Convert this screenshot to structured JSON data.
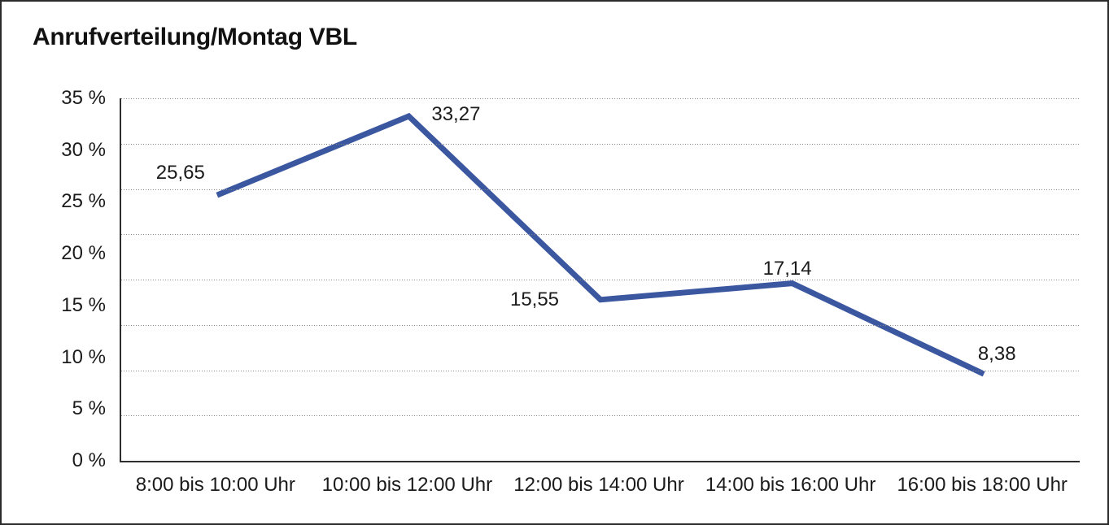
{
  "title": "Anrufverteilung/Montag VBL",
  "chart_data": {
    "type": "line",
    "title": "Anrufverteilung/Montag VBL",
    "categories": [
      "8:00 bis 10:00 Uhr",
      "10:00 bis 12:00 Uhr",
      "12:00 bis 14:00 Uhr",
      "14:00 bis 16:00 Uhr",
      "16:00 bis 18:00 Uhr"
    ],
    "values": [
      25.65,
      33.27,
      15.55,
      17.14,
      8.38
    ],
    "value_labels": [
      "25,65",
      "33,27",
      "15,55",
      "17,14",
      "8,38"
    ],
    "xlabel": "",
    "ylabel": "",
    "ylim": [
      0,
      35
    ],
    "y_tick_labels": [
      "35 %",
      "30 %",
      "25 %",
      "20 %",
      "15 %",
      "10 %",
      "5 %",
      "0 %"
    ],
    "y_tick_values": [
      35,
      30,
      25,
      20,
      15,
      10,
      5,
      0
    ],
    "gridline_count": 8,
    "grid": "horizontal-dotted",
    "legend": "none",
    "line_color": "#3A57A0",
    "line_width": 7
  }
}
